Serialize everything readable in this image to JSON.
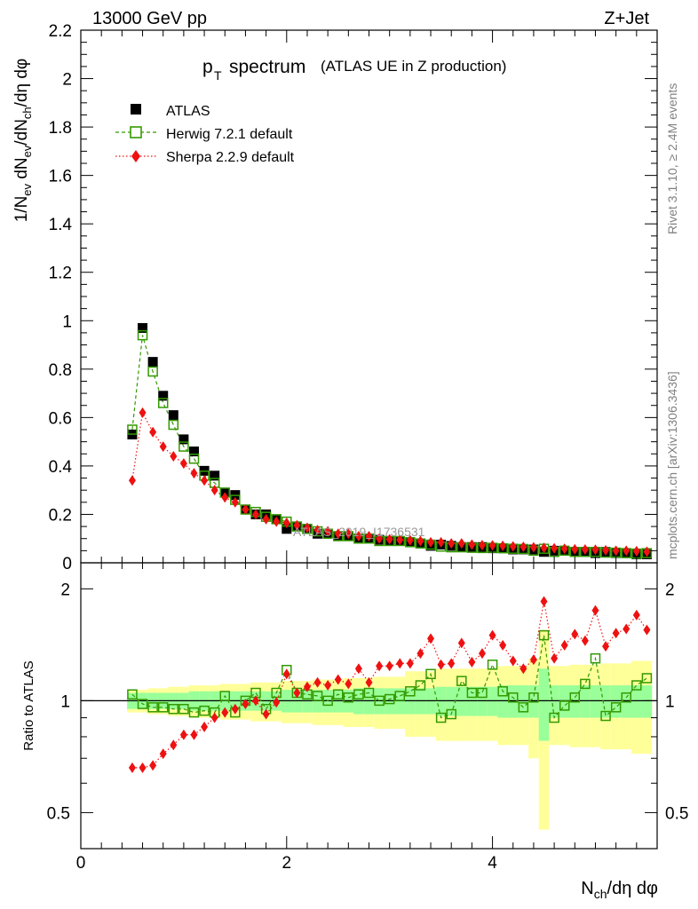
{
  "header": {
    "left": "13000 GeV pp",
    "right": "Z+Jet"
  },
  "side_labels": {
    "rivet": "Rivet 3.1.10, ≥ 2.4M events",
    "mcplots": "mcplots.cern.ch [arXiv:1306.3436]"
  },
  "watermark": "ATLAS_2019_I1736531",
  "colors": {
    "atlas": "#000000",
    "herwig": "#339900",
    "sherpa": "#ee1111",
    "band_inner": "#99ff99",
    "band_outer": "#ffff99"
  },
  "chart_data": [
    {
      "type": "scatter",
      "title": "spectrum",
      "title_prefix": "p",
      "title_prefix_sub": "T",
      "subtitle": "(ATLAS UE in Z production)",
      "ylabel": "1/N_ev dN_ev/dN_ch/dη dφ",
      "xlabel": "N_ch/dη dφ",
      "xlim": [
        0,
        5.6
      ],
      "ylim": [
        0,
        2.2
      ],
      "y_ticks": [
        "0",
        "0.2",
        "0.4",
        "0.6",
        "0.8",
        "1",
        "1.2",
        "1.4",
        "1.6",
        "1.8",
        "2",
        "2.2"
      ],
      "legend_position": "top-left",
      "x": [
        0.5,
        0.6,
        0.7,
        0.8,
        0.9,
        1.0,
        1.1,
        1.2,
        1.3,
        1.4,
        1.5,
        1.6,
        1.7,
        1.8,
        1.9,
        2.0,
        2.1,
        2.2,
        2.3,
        2.4,
        2.5,
        2.6,
        2.7,
        2.8,
        2.9,
        3.0,
        3.1,
        3.2,
        3.3,
        3.4,
        3.5,
        3.6,
        3.7,
        3.8,
        3.9,
        4.0,
        4.1,
        4.2,
        4.3,
        4.4,
        4.5,
        4.6,
        4.7,
        4.8,
        4.9,
        5.0,
        5.1,
        5.2,
        5.3,
        5.4,
        5.5
      ],
      "series": [
        {
          "name": "ATLAS",
          "style": "marker-square-filled",
          "values": [
            0.53,
            0.97,
            0.83,
            0.69,
            0.61,
            0.51,
            0.46,
            0.38,
            0.36,
            0.29,
            0.28,
            0.22,
            0.2,
            0.2,
            0.18,
            0.14,
            0.15,
            0.14,
            0.12,
            0.12,
            0.11,
            0.11,
            0.1,
            0.1,
            0.095,
            0.09,
            0.09,
            0.085,
            0.08,
            0.07,
            0.075,
            0.07,
            0.065,
            0.065,
            0.065,
            0.06,
            0.06,
            0.055,
            0.055,
            0.055,
            0.045,
            0.05,
            0.05,
            0.045,
            0.045,
            0.04,
            0.045,
            0.04,
            0.04,
            0.035,
            0.035
          ]
        },
        {
          "name": "Herwig 7.2.1 default",
          "style": "marker-square-open-dashed",
          "values": [
            0.55,
            0.94,
            0.79,
            0.66,
            0.57,
            0.48,
            0.43,
            0.36,
            0.33,
            0.29,
            0.26,
            0.22,
            0.21,
            0.19,
            0.18,
            0.17,
            0.15,
            0.14,
            0.13,
            0.12,
            0.11,
            0.11,
            0.1,
            0.1,
            0.09,
            0.09,
            0.09,
            0.085,
            0.08,
            0.075,
            0.067,
            0.064,
            0.064,
            0.062,
            0.061,
            0.062,
            0.06,
            0.058,
            0.057,
            0.05,
            0.058,
            0.045,
            0.05,
            0.045,
            0.045,
            0.045,
            0.042,
            0.042,
            0.04,
            0.038,
            0.04
          ]
        },
        {
          "name": "Sherpa 2.2.9 default",
          "style": "marker-diamond-dotted",
          "values": [
            0.34,
            0.62,
            0.54,
            0.48,
            0.44,
            0.41,
            0.37,
            0.34,
            0.3,
            0.27,
            0.25,
            0.22,
            0.2,
            0.18,
            0.17,
            0.165,
            0.155,
            0.145,
            0.135,
            0.13,
            0.12,
            0.12,
            0.11,
            0.11,
            0.1,
            0.097,
            0.095,
            0.093,
            0.09,
            0.085,
            0.085,
            0.08,
            0.08,
            0.075,
            0.073,
            0.072,
            0.07,
            0.068,
            0.066,
            0.064,
            0.062,
            0.06,
            0.058,
            0.056,
            0.055,
            0.054,
            0.052,
            0.05,
            0.05,
            0.048,
            0.046
          ]
        }
      ]
    },
    {
      "type": "scatter",
      "ylabel": "Ratio to ATLAS",
      "xlim": [
        0,
        5.6
      ],
      "ylim": [
        0.4,
        2.35
      ],
      "y_ticks": [
        "0.5",
        "1",
        "2"
      ],
      "x_ticks": [
        "0",
        "2",
        "4"
      ],
      "reference_line": 1,
      "band_inner_rel": [
        0.05,
        0.05,
        0.05,
        0.05,
        0.05,
        0.05,
        0.06,
        0.06,
        0.06,
        0.06,
        0.06,
        0.06,
        0.06,
        0.06,
        0.06,
        0.07,
        0.07,
        0.07,
        0.07,
        0.07,
        0.07,
        0.07,
        0.08,
        0.08,
        0.08,
        0.08,
        0.08,
        0.08,
        0.08,
        0.08,
        0.09,
        0.09,
        0.09,
        0.09,
        0.09,
        0.09,
        0.1,
        0.1,
        0.1,
        0.1,
        0.22,
        0.1,
        0.1,
        0.1,
        0.1,
        0.1,
        0.1,
        0.1,
        0.1,
        0.1,
        0.1
      ],
      "band_outer_rel": [
        0.07,
        0.07,
        0.08,
        0.08,
        0.09,
        0.09,
        0.1,
        0.1,
        0.1,
        0.11,
        0.11,
        0.11,
        0.12,
        0.12,
        0.12,
        0.13,
        0.13,
        0.13,
        0.14,
        0.14,
        0.14,
        0.15,
        0.15,
        0.15,
        0.16,
        0.16,
        0.16,
        0.2,
        0.2,
        0.2,
        0.22,
        0.22,
        0.22,
        0.22,
        0.22,
        0.22,
        0.24,
        0.24,
        0.24,
        0.3,
        0.55,
        0.24,
        0.24,
        0.25,
        0.25,
        0.25,
        0.26,
        0.26,
        0.26,
        0.28,
        0.28
      ],
      "series": [
        {
          "name": "Herwig 7.2.1 default",
          "values": [
            1.04,
            0.98,
            0.96,
            0.96,
            0.95,
            0.95,
            0.93,
            0.94,
            0.93,
            1.03,
            0.93,
            1.0,
            1.05,
            0.95,
            1.05,
            1.21,
            1.05,
            1.04,
            1.03,
            1.0,
            1.04,
            1.02,
            1.04,
            1.05,
            1.0,
            1.01,
            1.03,
            1.06,
            1.1,
            1.18,
            0.9,
            0.92,
            1.13,
            1.05,
            1.05,
            1.25,
            1.06,
            1.02,
            0.96,
            1.02,
            1.5,
            0.9,
            0.97,
            1.02,
            1.11,
            1.3,
            0.91,
            0.96,
            1.02,
            1.1,
            1.15
          ]
        },
        {
          "name": "Sherpa 2.2.9 default",
          "values": [
            0.66,
            0.66,
            0.67,
            0.72,
            0.76,
            0.81,
            0.81,
            0.85,
            0.9,
            0.93,
            0.95,
            0.98,
            1.0,
            0.92,
            0.99,
            1.18,
            1.05,
            1.09,
            1.12,
            1.1,
            1.14,
            1.11,
            1.22,
            1.12,
            1.24,
            1.24,
            1.26,
            1.26,
            1.34,
            1.47,
            1.25,
            1.26,
            1.43,
            1.27,
            1.34,
            1.5,
            1.41,
            1.28,
            1.22,
            1.29,
            1.85,
            1.3,
            1.41,
            1.51,
            1.45,
            1.75,
            1.4,
            1.52,
            1.56,
            1.7,
            1.55
          ]
        }
      ]
    }
  ]
}
